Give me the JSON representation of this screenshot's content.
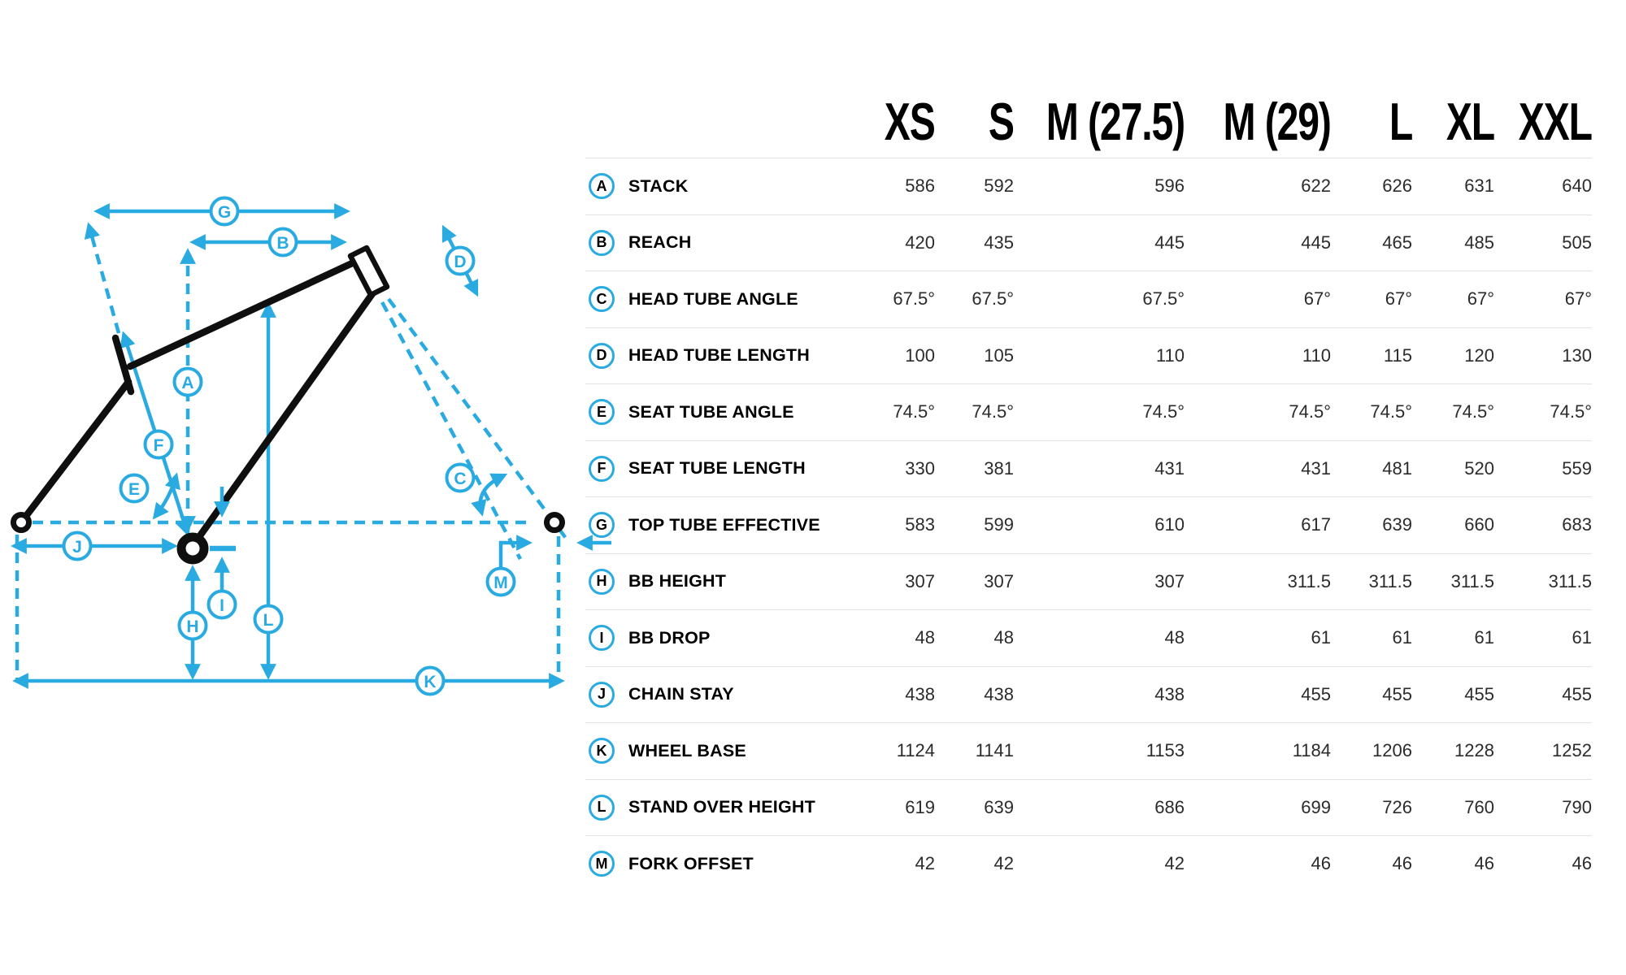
{
  "colors": {
    "accent": "#29ABE2",
    "frame": "#0F0F0F",
    "divider": "#E2E2E2",
    "value_text": "#2B2B2B",
    "label_text": "#000000"
  },
  "diagram": {
    "labels": [
      "A",
      "B",
      "C",
      "D",
      "E",
      "F",
      "G",
      "H",
      "I",
      "J",
      "K",
      "L",
      "M"
    ]
  },
  "table": {
    "columns": [
      "XS",
      "S",
      "M (27.5)",
      "M (29)",
      "L",
      "XL",
      "XXL"
    ],
    "rows": [
      {
        "key": "A",
        "label": "STACK",
        "values": [
          "586",
          "592",
          "596",
          "622",
          "626",
          "631",
          "640"
        ]
      },
      {
        "key": "B",
        "label": "REACH",
        "values": [
          "420",
          "435",
          "445",
          "445",
          "465",
          "485",
          "505"
        ]
      },
      {
        "key": "C",
        "label": "HEAD TUBE ANGLE",
        "values": [
          "67.5°",
          "67.5°",
          "67.5°",
          "67°",
          "67°",
          "67°",
          "67°"
        ]
      },
      {
        "key": "D",
        "label": "HEAD TUBE LENGTH",
        "values": [
          "100",
          "105",
          "110",
          "110",
          "115",
          "120",
          "130"
        ]
      },
      {
        "key": "E",
        "label": "SEAT TUBE ANGLE",
        "values": [
          "74.5°",
          "74.5°",
          "74.5°",
          "74.5°",
          "74.5°",
          "74.5°",
          "74.5°"
        ]
      },
      {
        "key": "F",
        "label": "SEAT TUBE LENGTH",
        "values": [
          "330",
          "381",
          "431",
          "431",
          "481",
          "520",
          "559"
        ]
      },
      {
        "key": "G",
        "label": "TOP TUBE EFFECTIVE",
        "values": [
          "583",
          "599",
          "610",
          "617",
          "639",
          "660",
          "683"
        ]
      },
      {
        "key": "H",
        "label": "BB HEIGHT",
        "values": [
          "307",
          "307",
          "307",
          "311.5",
          "311.5",
          "311.5",
          "311.5"
        ]
      },
      {
        "key": "I",
        "label": "BB DROP",
        "values": [
          "48",
          "48",
          "48",
          "61",
          "61",
          "61",
          "61"
        ]
      },
      {
        "key": "J",
        "label": "CHAIN STAY",
        "values": [
          "438",
          "438",
          "438",
          "455",
          "455",
          "455",
          "455"
        ]
      },
      {
        "key": "K",
        "label": "WHEEL BASE",
        "values": [
          "1124",
          "1141",
          "1153",
          "1184",
          "1206",
          "1228",
          "1252"
        ]
      },
      {
        "key": "L",
        "label": "STAND OVER HEIGHT",
        "values": [
          "619",
          "639",
          "686",
          "699",
          "726",
          "760",
          "790"
        ]
      },
      {
        "key": "M",
        "label": "FORK OFFSET",
        "values": [
          "42",
          "42",
          "42",
          "46",
          "46",
          "46",
          "46"
        ]
      }
    ]
  }
}
